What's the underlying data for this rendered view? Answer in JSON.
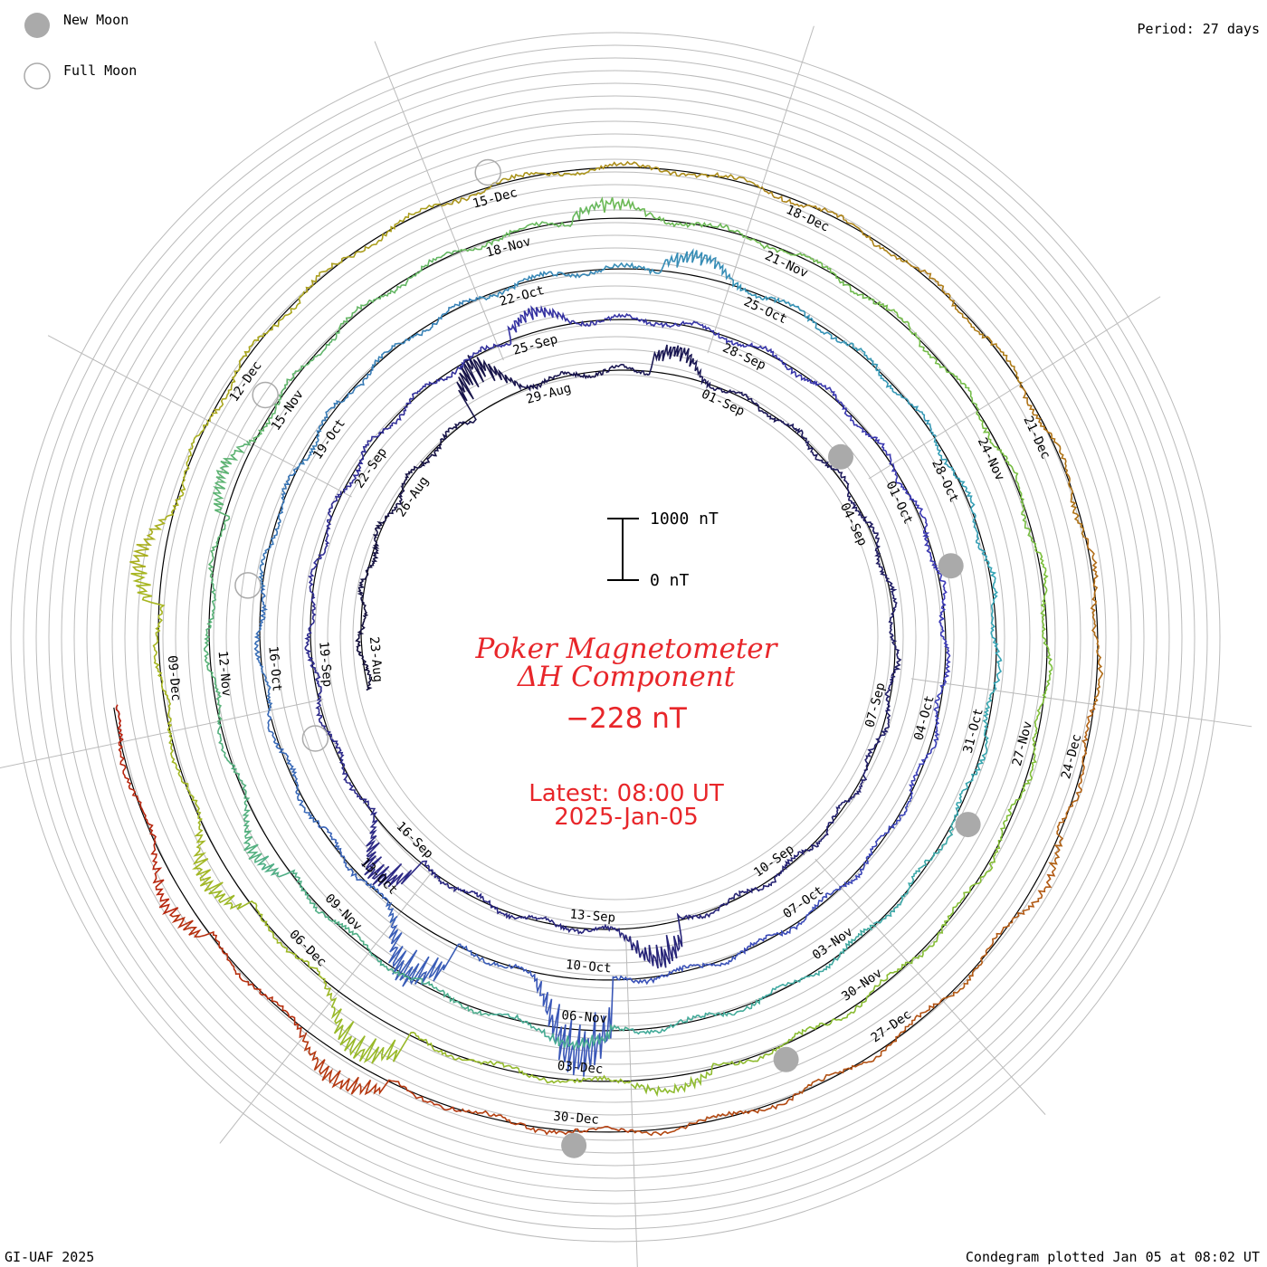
{
  "legend": {
    "new_moon_label": "New Moon",
    "full_moon_label": "Full Moon",
    "new_moon_color": "#aaaaaa",
    "full_moon_color": "#aaaaaa"
  },
  "header": {
    "period_label": "Period: 27 days"
  },
  "footer": {
    "credit": "GI-UAF 2025",
    "plotted": "Condegram plotted Jan 05 at 08:02 UT"
  },
  "center": {
    "title_line1": "Poker Magnetometer",
    "title_line2": "ΔH Component",
    "current_value": "−228 nT",
    "latest_label": "Latest: 08:00 UT",
    "latest_date": "2025-Jan-05",
    "scale_top_label": "1000 nT",
    "scale_bottom_label": "0 nT"
  },
  "chart_data": {
    "type": "condegram",
    "period_days": 27,
    "units": "nT",
    "start_date": "2024-08-23",
    "end_date": "2025-01-05",
    "scale_bar_nT": [
      0,
      1000
    ],
    "latest_value_nT": -228,
    "tick_labels": [
      "23-Aug",
      "26-Aug",
      "29-Aug",
      "01-Sep",
      "04-Sep",
      "07-Sep",
      "10-Sep",
      "13-Sep",
      "16-Sep",
      "19-Sep",
      "22-Sep",
      "25-Sep",
      "28-Sep",
      "01-Oct",
      "04-Oct",
      "07-Oct",
      "10-Oct",
      "13-Oct",
      "16-Oct",
      "19-Oct",
      "22-Oct",
      "25-Oct",
      "28-Oct",
      "31-Oct",
      "03-Nov",
      "06-Nov",
      "09-Nov",
      "12-Nov",
      "15-Nov",
      "18-Nov",
      "21-Nov",
      "24-Nov",
      "27-Nov",
      "30-Nov",
      "03-Dec",
      "06-Dec",
      "09-Dec",
      "12-Dec",
      "15-Dec",
      "18-Dec",
      "21-Dec",
      "24-Dec",
      "27-Dec",
      "30-Dec"
    ],
    "new_moons": [
      "2024-09-03",
      "2024-10-02",
      "2024-11-01",
      "2024-12-01",
      "2024-12-30"
    ],
    "full_moons": [
      "2024-09-18",
      "2024-10-17",
      "2024-11-15",
      "2024-12-15"
    ],
    "storm_events": [
      {
        "date": "2024-08-28",
        "amplitude_nT": -900
      },
      {
        "date": "2024-08-31",
        "amplitude_nT": -500
      },
      {
        "date": "2024-09-12",
        "amplitude_nT": -700
      },
      {
        "date": "2024-09-16",
        "amplitude_nT": -800
      },
      {
        "date": "2024-09-25",
        "amplitude_nT": -400
      },
      {
        "date": "2024-10-10",
        "amplitude_nT": -1600
      },
      {
        "date": "2024-10-12",
        "amplitude_nT": -1000
      },
      {
        "date": "2024-10-24",
        "amplitude_nT": -400
      },
      {
        "date": "2024-11-06",
        "amplitude_nT": -300
      },
      {
        "date": "2024-11-10",
        "amplitude_nT": -400
      },
      {
        "date": "2024-11-14",
        "amplitude_nT": -350
      },
      {
        "date": "2024-11-19",
        "amplitude_nT": -300
      },
      {
        "date": "2024-12-02",
        "amplitude_nT": -250
      },
      {
        "date": "2024-12-05",
        "amplitude_nT": -800
      },
      {
        "date": "2024-12-07",
        "amplitude_nT": -500
      },
      {
        "date": "2024-12-10",
        "amplitude_nT": -500
      },
      {
        "date": "2024-12-25",
        "amplitude_nT": -200
      },
      {
        "date": "2025-01-01",
        "amplitude_nT": -500
      },
      {
        "date": "2025-01-03",
        "amplitude_nT": -400
      }
    ],
    "colors": {
      "start": "#14103c",
      "mid": "#35a5b5",
      "green": "#7cbf3a",
      "end": "#b81c0c",
      "reference_circle": "#000000",
      "grid": "#bbbbbb",
      "text": "#e8262a"
    }
  }
}
